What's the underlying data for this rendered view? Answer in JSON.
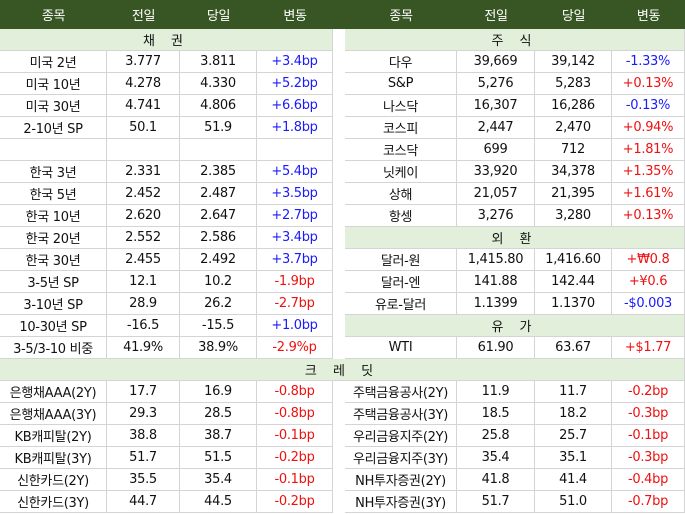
{
  "colors": {
    "header_bg": "#375623",
    "section_bg": "#e2efda",
    "up_stock": "#ee1111",
    "down_stock": "#1a1aff"
  },
  "headers": {
    "left": [
      "종목",
      "전일",
      "당일",
      "변동"
    ],
    "right": [
      "종목",
      "전일",
      "당일",
      "변동"
    ]
  },
  "sections": {
    "bonds": "채 권",
    "stocks": "주 식",
    "fx": "외 환",
    "oil": "유 가",
    "credit": "크 레 딧"
  },
  "bonds": [
    {
      "name": "미국 2년",
      "prev": "3.777",
      "curr": "3.811",
      "chg": "+3.4bp",
      "tone": "pos"
    },
    {
      "name": "미국 10년",
      "prev": "4.278",
      "curr": "4.330",
      "chg": "+5.2bp",
      "tone": "pos"
    },
    {
      "name": "미국 30년",
      "prev": "4.741",
      "curr": "4.806",
      "chg": "+6.6bp",
      "tone": "pos"
    },
    {
      "name": "2-10년 SP",
      "prev": "50.1",
      "curr": "51.9",
      "chg": "+1.8bp",
      "tone": "pos"
    },
    null,
    {
      "name": "한국 3년",
      "prev": "2.331",
      "curr": "2.385",
      "chg": "+5.4bp",
      "tone": "pos"
    },
    {
      "name": "한국 5년",
      "prev": "2.452",
      "curr": "2.487",
      "chg": "+3.5bp",
      "tone": "pos"
    },
    {
      "name": "한국 10년",
      "prev": "2.620",
      "curr": "2.647",
      "chg": "+2.7bp",
      "tone": "pos"
    },
    {
      "name": "한국 20년",
      "prev": "2.552",
      "curr": "2.586",
      "chg": "+3.4bp",
      "tone": "pos"
    },
    {
      "name": "한국 30년",
      "prev": "2.455",
      "curr": "2.492",
      "chg": "+3.7bp",
      "tone": "pos"
    },
    {
      "name": "3-5년 SP",
      "prev": "12.1",
      "curr": "10.2",
      "chg": "-1.9bp",
      "tone": "neg"
    },
    {
      "name": "3-10년 SP",
      "prev": "28.9",
      "curr": "26.2",
      "chg": "-2.7bp",
      "tone": "neg"
    },
    {
      "name": "10-30년 SP",
      "prev": "-16.5",
      "curr": "-15.5",
      "chg": "+1.0bp",
      "tone": "pos"
    },
    {
      "name": "3-5/3-10 비중",
      "prev": "41.9%",
      "curr": "38.9%",
      "chg": "-2.9%p",
      "tone": "neg"
    }
  ],
  "stocks": [
    {
      "name": "다우",
      "prev": "39,669",
      "curr": "39,142",
      "chg": "-1.33%",
      "tone": "pos"
    },
    {
      "name": "S&P",
      "prev": "5,276",
      "curr": "5,283",
      "chg": "+0.13%",
      "tone": "neg"
    },
    {
      "name": "나스닥",
      "prev": "16,307",
      "curr": "16,286",
      "chg": "-0.13%",
      "tone": "pos"
    },
    {
      "name": "코스피",
      "prev": "2,447",
      "curr": "2,470",
      "chg": "+0.94%",
      "tone": "neg"
    },
    {
      "name": "코스닥",
      "prev": "699",
      "curr": "712",
      "chg": "+1.81%",
      "tone": "neg"
    },
    {
      "name": "닛케이",
      "prev": "33,920",
      "curr": "34,378",
      "chg": "+1.35%",
      "tone": "neg"
    },
    {
      "name": "상해",
      "prev": "21,057",
      "curr": "21,395",
      "chg": "+1.61%",
      "tone": "neg"
    },
    {
      "name": "항셍",
      "prev": "3,276",
      "curr": "3,280",
      "chg": "+0.13%",
      "tone": "neg"
    }
  ],
  "fx": [
    {
      "name": "달러-원",
      "prev": "1,415.80",
      "curr": "1,416.60",
      "chg": "+₩0.8",
      "tone": "neg"
    },
    {
      "name": "달러-엔",
      "prev": "141.88",
      "curr": "142.44",
      "chg": "+¥0.6",
      "tone": "neg"
    },
    {
      "name": "유로-달러",
      "prev": "1.1399",
      "curr": "1.1370",
      "chg": "-$0.003",
      "tone": "pos"
    }
  ],
  "oil": [
    {
      "name": "WTI",
      "prev": "61.90",
      "curr": "63.67",
      "chg": "+$1.77",
      "tone": "neg"
    }
  ],
  "credit_left": [
    {
      "name": "은행채AAA(2Y)",
      "prev": "17.7",
      "curr": "16.9",
      "chg": "-0.8bp",
      "tone": "neg"
    },
    {
      "name": "은행채AAA(3Y)",
      "prev": "29.3",
      "curr": "28.5",
      "chg": "-0.8bp",
      "tone": "neg"
    },
    {
      "name": "KB캐피탈(2Y)",
      "prev": "38.8",
      "curr": "38.7",
      "chg": "-0.1bp",
      "tone": "neg"
    },
    {
      "name": "KB캐피탈(3Y)",
      "prev": "51.7",
      "curr": "51.5",
      "chg": "-0.2bp",
      "tone": "neg"
    },
    {
      "name": "신한카드(2Y)",
      "prev": "35.5",
      "curr": "35.4",
      "chg": "-0.1bp",
      "tone": "neg"
    },
    {
      "name": "신한카드(3Y)",
      "prev": "44.7",
      "curr": "44.5",
      "chg": "-0.2bp",
      "tone": "neg"
    }
  ],
  "credit_right": [
    {
      "name": "주택금융공사(2Y)",
      "prev": "11.9",
      "curr": "11.7",
      "chg": "-0.2bp",
      "tone": "neg"
    },
    {
      "name": "주택금융공사(3Y)",
      "prev": "18.5",
      "curr": "18.2",
      "chg": "-0.3bp",
      "tone": "neg"
    },
    {
      "name": "우리금융지주(2Y)",
      "prev": "25.8",
      "curr": "25.7",
      "chg": "-0.1bp",
      "tone": "neg"
    },
    {
      "name": "우리금융지주(3Y)",
      "prev": "35.4",
      "curr": "35.1",
      "chg": "-0.3bp",
      "tone": "neg"
    },
    {
      "name": "NH투자증권(2Y)",
      "prev": "41.8",
      "curr": "41.4",
      "chg": "-0.4bp",
      "tone": "neg"
    },
    {
      "name": "NH투자증권(3Y)",
      "prev": "51.7",
      "curr": "51.0",
      "chg": "-0.7bp",
      "tone": "neg"
    }
  ]
}
